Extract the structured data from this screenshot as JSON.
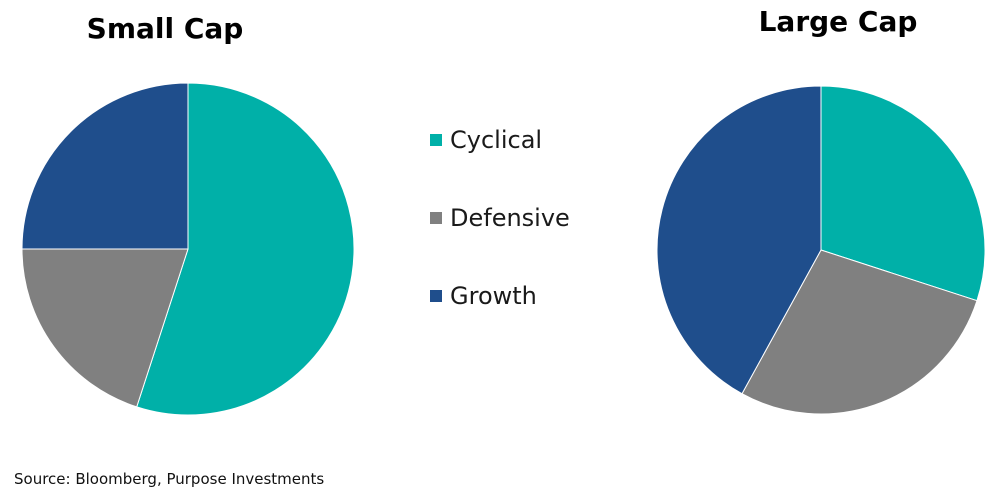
{
  "chart_data": [
    {
      "type": "pie",
      "title": "Small Cap",
      "categories": [
        "Cyclical",
        "Defensive",
        "Growth"
      ],
      "values": [
        55,
        20,
        25
      ],
      "start": "12 o'clock",
      "direction": "clockwise"
    },
    {
      "type": "pie",
      "title": "Large Cap",
      "categories": [
        "Cyclical",
        "Defensive",
        "Growth"
      ],
      "values": [
        30,
        28,
        42
      ],
      "start": "12 o'clock",
      "direction": "clockwise"
    }
  ],
  "legend": {
    "placement": "center",
    "items": [
      {
        "label": "Cyclical",
        "color": "#00B0A8"
      },
      {
        "label": "Defensive",
        "color": "#808080"
      },
      {
        "label": "Growth",
        "color": "#1F4E8C"
      }
    ]
  },
  "source": "Source: Bloomberg, Purpose Investments"
}
